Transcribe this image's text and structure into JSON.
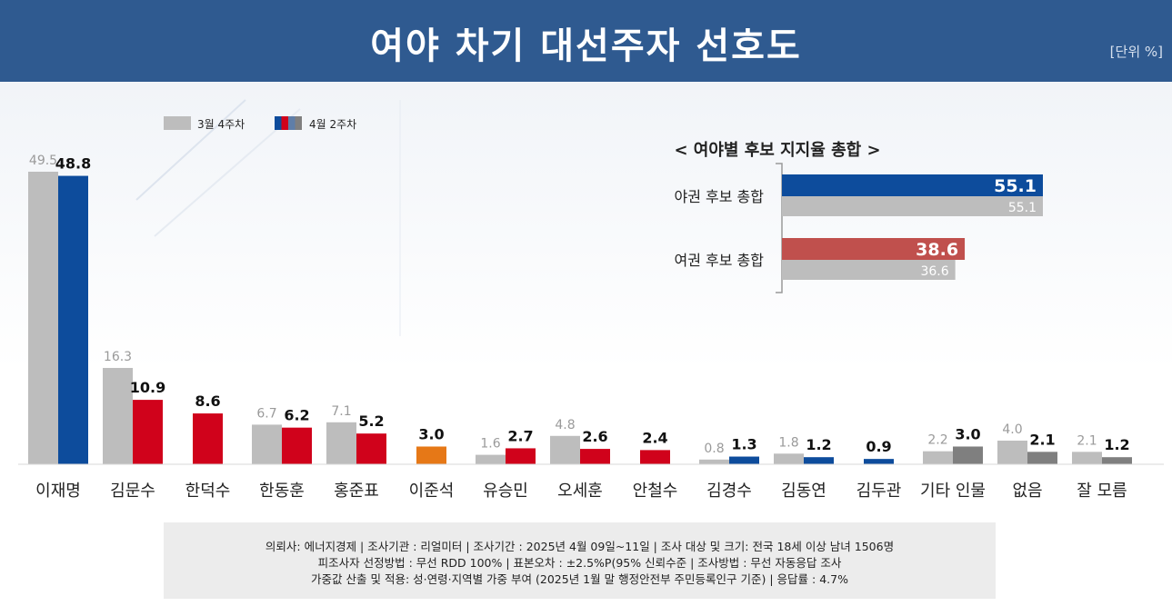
{
  "header": {
    "title": "여야 차기 대선주자 선호도",
    "unit": "[단위 %]"
  },
  "colors": {
    "header": "#2f5a90",
    "prev": "#bdbdbd",
    "blue": "#0d4c9c",
    "red": "#d0021b",
    "orange": "#e67817",
    "gray": "#7f7f7f",
    "red_inset": "#c0504d"
  },
  "chart_data": [
    {
      "type": "bar",
      "legend": {
        "items": [
          "3월 4주차",
          "4월 2주차"
        ],
        "placement": "top-left"
      },
      "categories": [
        "이재명",
        "김문수",
        "한덕수",
        "한동훈",
        "홍준표",
        "이준석",
        "유승민",
        "오세훈",
        "안철수",
        "김경수",
        "김동연",
        "김두관",
        "기타 인물",
        "없음",
        "잘 모름"
      ],
      "series": [
        {
          "name": "3월 4주차",
          "values": [
            49.5,
            16.3,
            null,
            6.7,
            7.1,
            null,
            1.6,
            4.8,
            null,
            0.8,
            1.8,
            null,
            2.2,
            4.0,
            2.1
          ],
          "labels": [
            "49.5",
            "16.3",
            "",
            "6.7",
            "7.1",
            "",
            "1.6",
            "4.8",
            "",
            "0.8",
            "1.8",
            "",
            "2.2",
            "4.0",
            "2.1"
          ]
        },
        {
          "name": "4월 2주차",
          "values": [
            48.8,
            10.9,
            8.6,
            6.2,
            5.2,
            3.0,
            2.7,
            2.6,
            2.4,
            1.3,
            1.2,
            0.9,
            3.0,
            2.1,
            1.2
          ],
          "labels": [
            "48.8",
            "10.9",
            "8.6",
            "6.2",
            "5.2",
            "3.0",
            "2.7",
            "2.6",
            "2.4",
            "1.3",
            "1.2",
            "0.9",
            "3.0",
            "2.1",
            "1.2"
          ],
          "colors": [
            "blue",
            "red",
            "red",
            "red",
            "red",
            "orange",
            "red",
            "red",
            "red",
            "blue",
            "blue",
            "blue",
            "gray",
            "gray",
            "gray"
          ]
        }
      ],
      "ylim": [
        0,
        52
      ]
    },
    {
      "type": "bar",
      "orientation": "horizontal",
      "title": "< 여야별 후보 지지율 총합 >",
      "categories": [
        "야권 후보 총합",
        "여권 후보 총합"
      ],
      "series": [
        {
          "name": "4월 2주차",
          "values": [
            55.1,
            38.6
          ],
          "labels": [
            "55.1",
            "38.6"
          ],
          "colors": [
            "blue",
            "red_inset"
          ]
        },
        {
          "name": "3월 4주차",
          "values": [
            55.1,
            36.6
          ],
          "labels": [
            "55.1",
            "36.6"
          ]
        }
      ]
    }
  ],
  "footer": {
    "line1": "의뢰사: 에너지경제 | 조사기관 : 리얼미터  |  조사기간 : 2025년 4월 09일~11일 | 조사 대상 및 크기: 전국 18세 이상 남녀 1506명",
    "line2": "피조사자 선정방법 : 무선 RDD 100% | 표본오차 : ±2.5%P(95% 신뢰수준 | 조사방법 : 무선 자동응답 조사",
    "line3": "가중값 산출 및 적용: 성·연령·지역별 가중 부여 (2025년 1월 말 행정안전부 주민등록인구 기준) | 응답률 : 4.7%"
  }
}
